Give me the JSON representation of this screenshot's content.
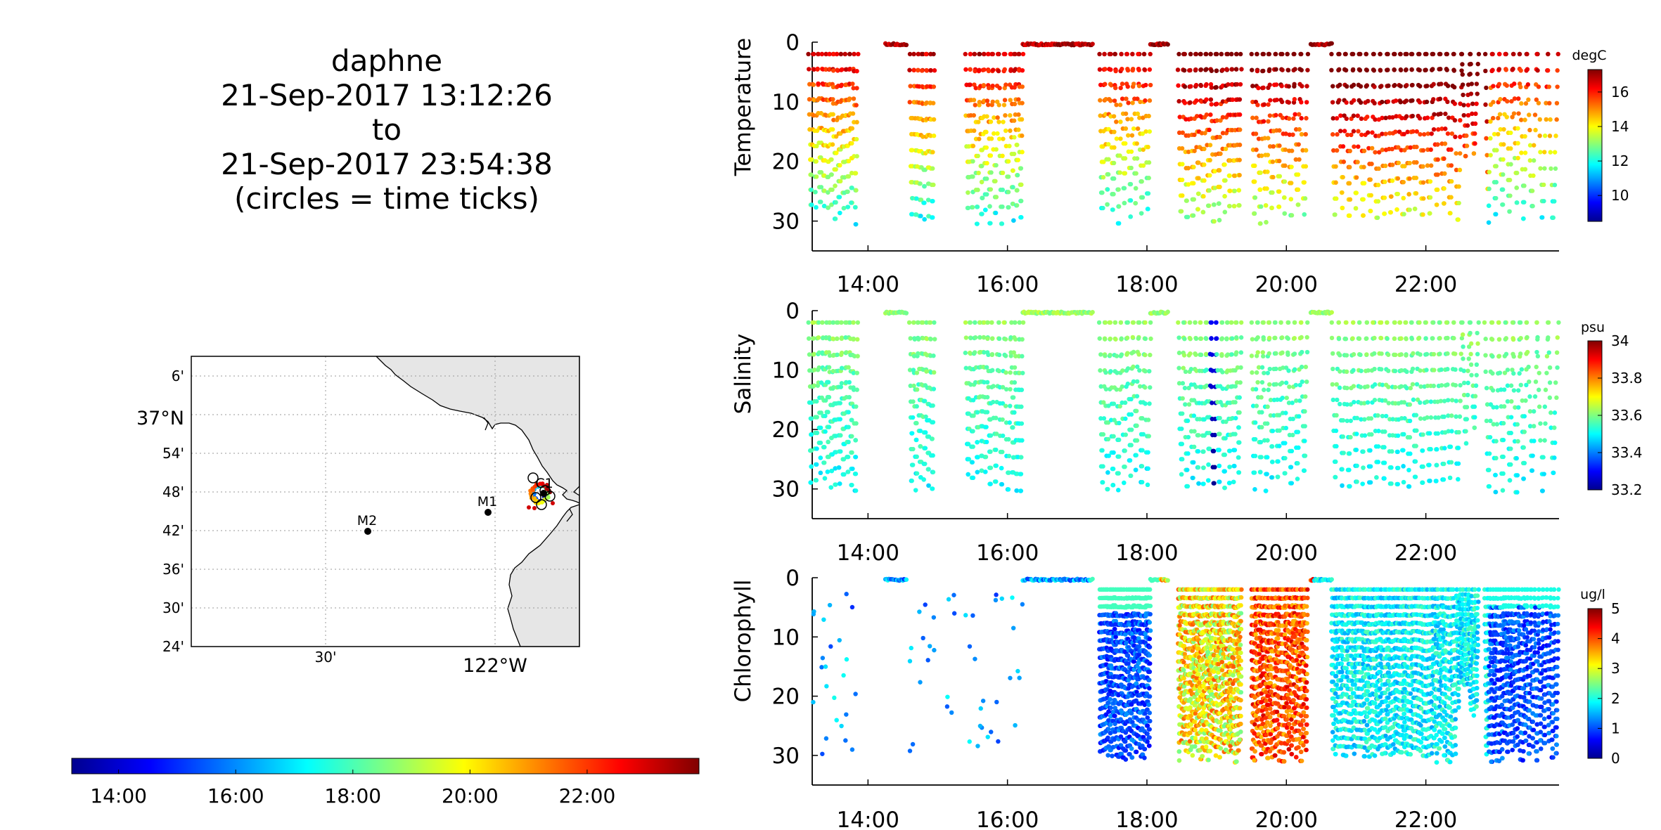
{
  "title_lines": [
    "daphne",
    "21-Sep-2017 13:12:26",
    "to",
    "21-Sep-2017 23:54:38",
    "(circles = time ticks)"
  ],
  "map": {
    "lat_labels": [
      "6'",
      "37°N",
      "54'",
      "48'",
      "42'",
      "36'",
      "30'",
      "24'"
    ],
    "lon_labels": [
      "30'",
      "122°W"
    ],
    "moorings": [
      {
        "name": "M2",
        "lon": -122.38,
        "lat": 36.7
      },
      {
        "name": "M1",
        "lon": -122.03,
        "lat": 36.75
      },
      {
        "name": "C1",
        "lon": -121.91,
        "lat": 36.8
      }
    ],
    "land_color": "#e6e6e6",
    "track_colormap": "jet"
  },
  "time_colorbar": {
    "tick_labels": [
      "14:00",
      "16:00",
      "18:00",
      "20:00",
      "22:00"
    ],
    "colormap": "jet"
  },
  "chart_data": [
    {
      "type": "scatter",
      "ylabel": "Temperature",
      "unit": "degC",
      "x_ticks": [
        "14:00",
        "16:00",
        "18:00",
        "20:00",
        "22:00"
      ],
      "y_ticks": [
        0,
        10,
        20,
        30
      ],
      "ylim": [
        0,
        35
      ],
      "y_direction": "inverted",
      "clim": [
        8.5,
        17.3
      ],
      "colorbar_ticks": [
        16,
        14,
        12,
        10
      ],
      "colormap": "jet",
      "value_profile": "temperature"
    },
    {
      "type": "scatter",
      "ylabel": "Salinity",
      "unit": "psu",
      "x_ticks": [
        "14:00",
        "16:00",
        "18:00",
        "20:00",
        "22:00"
      ],
      "y_ticks": [
        0,
        10,
        20,
        30
      ],
      "ylim": [
        0,
        35
      ],
      "y_direction": "inverted",
      "clim": [
        33.2,
        34.0
      ],
      "colorbar_ticks": [
        34,
        33.8,
        33.6,
        33.4,
        33.2
      ],
      "colormap": "jet",
      "value_profile": "salinity"
    },
    {
      "type": "scatter",
      "ylabel": "Chlorophyll",
      "unit": "ug/l",
      "x_ticks": [
        "14:00",
        "16:00",
        "18:00",
        "20:00",
        "22:00"
      ],
      "y_ticks": [
        0,
        10,
        20,
        30
      ],
      "ylim": [
        0,
        35
      ],
      "y_direction": "inverted",
      "clim": [
        0,
        5
      ],
      "colorbar_ticks": [
        5,
        4,
        3,
        2,
        1,
        0
      ],
      "colormap": "jet",
      "value_profile": "chlorophyll"
    }
  ]
}
